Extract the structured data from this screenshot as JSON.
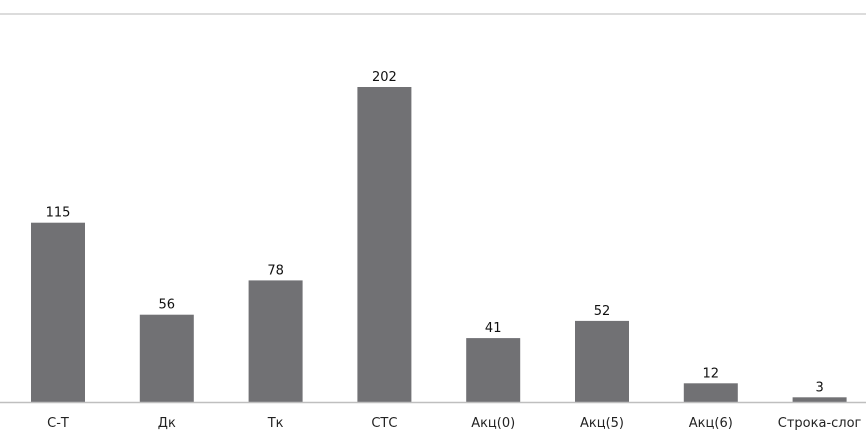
{
  "chart_data": {
    "type": "bar",
    "title": "",
    "xlabel": "",
    "ylabel": "",
    "categories": [
      "С-Т",
      "Дк",
      "Тк",
      "СТС",
      "Акц(0)",
      "Акц(5)",
      "Акц(6)",
      "Строка-слог"
    ],
    "values": [
      115,
      56,
      78,
      202,
      41,
      52,
      12,
      3
    ],
    "ylim": [
      0,
      230
    ],
    "grid": false,
    "legend": "none",
    "data_labels": true,
    "colors": {
      "bar": "#717174",
      "axis": "#bfbfbf",
      "top_rule": "#d0d0d0"
    }
  }
}
